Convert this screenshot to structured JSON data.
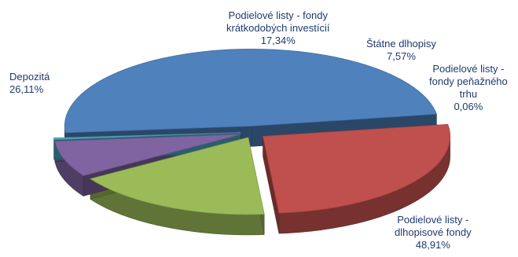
{
  "chart_data": {
    "type": "pie",
    "title": "",
    "slices": [
      {
        "label_lines": [
          "Podielové listy -",
          "dlhopisové fondy"
        ],
        "value_label": "48,91%",
        "value": 48.91,
        "color": "#4f81bd"
      },
      {
        "label_lines": [
          "Depozitá"
        ],
        "value_label": "26,11%",
        "value": 26.11,
        "color": "#c0504d"
      },
      {
        "label_lines": [
          "Podielové listy - fondy",
          "krátkodobých investícií"
        ],
        "value_label": "17,34%",
        "value": 17.34,
        "color": "#9bbb59"
      },
      {
        "label_lines": [
          "Štátne dlhopisy"
        ],
        "value_label": "7,57%",
        "value": 7.57,
        "color": "#8064a2"
      },
      {
        "label_lines": [
          "Podielové listy -",
          "fondy peňažného",
          "trhu"
        ],
        "value_label": "0,06%",
        "value": 0.06,
        "color": "#4bacc6"
      }
    ]
  }
}
